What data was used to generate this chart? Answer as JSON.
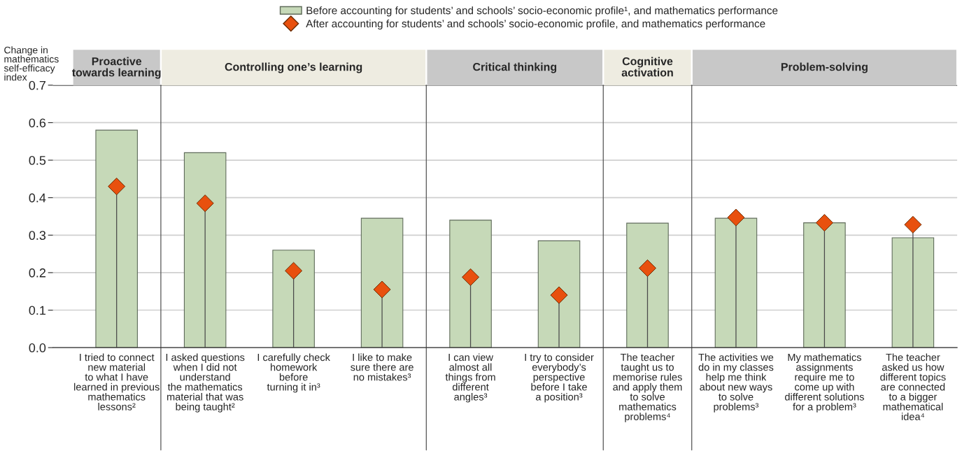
{
  "chart_data": {
    "type": "bar",
    "ylabel": "Change in\nmathematics\nself-efficacy\nindex",
    "categories": [
      "I tried to connect\nnew material\nto what I have\nlearned in previous\nmathematics\nlessons²",
      "I asked questions\nwhen I did not\nunderstand\nthe mathematics\nmaterial that was\nbeing taught²",
      "I carefully check\nhomework\nbefore\nturning it in³",
      "I like to make\nsure there are\nno mistakes³",
      "I can view\nalmost all\nthings from\ndifferent\nangles³",
      "I try to consider\neverybody’s\nperspective\nbefore I take\na position³",
      "The teacher\ntaught us to\nmemorise rules\nand apply them\nto solve\nmathematics\nproblems⁴",
      "The activities we\ndo in my classes\nhelp me think\nabout new ways\nto solve\nproblems³",
      "My mathematics\nassignments\nrequire me to\ncome up with\ndifferent solutions\nfor a problem³",
      "The teacher\nasked us how\ndifferent topics\nare connected\nto a bigger\nmathematical\nidea⁴"
    ],
    "series": [
      {
        "name": "Before accounting for students’ and schools’ socio-economic profile¹, and mathematics performance",
        "color": "#c6d9b8",
        "values": [
          0.58,
          0.52,
          0.26,
          0.345,
          0.34,
          0.285,
          0.332,
          0.345,
          0.333,
          0.293
        ]
      },
      {
        "name": "After accounting for students’ and schools’ socio-economic profile, and mathematics performance",
        "type": "lollipop",
        "color": "#e8500e",
        "marker": "diamond",
        "values": [
          0.43,
          0.385,
          0.205,
          0.155,
          0.188,
          0.14,
          0.212,
          0.347,
          0.333,
          0.328
        ]
      }
    ],
    "ylim": [
      0,
      0.7
    ],
    "yticks": [
      {
        "value": 0,
        "label": "0.0"
      },
      0.1,
      0.2,
      0.3,
      0.4,
      0.5,
      0.6,
      0.7
    ],
    "annotations": [
      "Proactive\ntowards learning",
      "Controlling one’s learning",
      "Critical thinking",
      "Cognitive\nactivation",
      "Problem-solving"
    ],
    "grid": "y",
    "legend": "top"
  }
}
